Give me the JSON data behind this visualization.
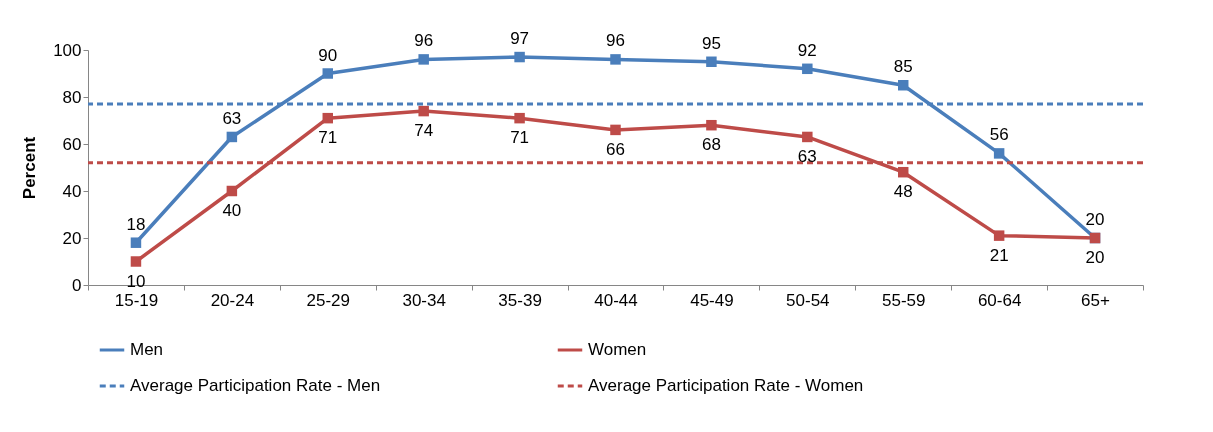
{
  "chart_data": {
    "type": "line",
    "ylabel": "Percent",
    "categories": [
      "15-19",
      "20-24",
      "25-29",
      "30-34",
      "35-39",
      "40-44",
      "45-49",
      "50-54",
      "55-59",
      "60-64",
      "65+"
    ],
    "series": [
      {
        "name": "Men",
        "color": "#4a7ebb",
        "values": [
          18,
          63,
          90,
          96,
          97,
          96,
          95,
          92,
          85,
          56,
          20
        ]
      },
      {
        "name": "Women",
        "color": "#be4b48",
        "values": [
          10,
          40,
          71,
          74,
          71,
          66,
          68,
          63,
          48,
          21,
          20
        ]
      }
    ],
    "ref_lines": [
      {
        "axis": "y",
        "value": 77,
        "label": "Average Participation Rate - Men",
        "color": "#4a7ebb",
        "line_style": "dashed"
      },
      {
        "axis": "y",
        "value": 52,
        "label": "Average Participation Rate - Women",
        "color": "#be4b48",
        "line_style": "dashed"
      }
    ],
    "ylim": [
      0,
      100
    ],
    "yticks": [
      0,
      20,
      40,
      60,
      80,
      100
    ],
    "grid": false,
    "legend": "bottom",
    "marker": "square",
    "line_style": "solid",
    "data_labels": true
  }
}
